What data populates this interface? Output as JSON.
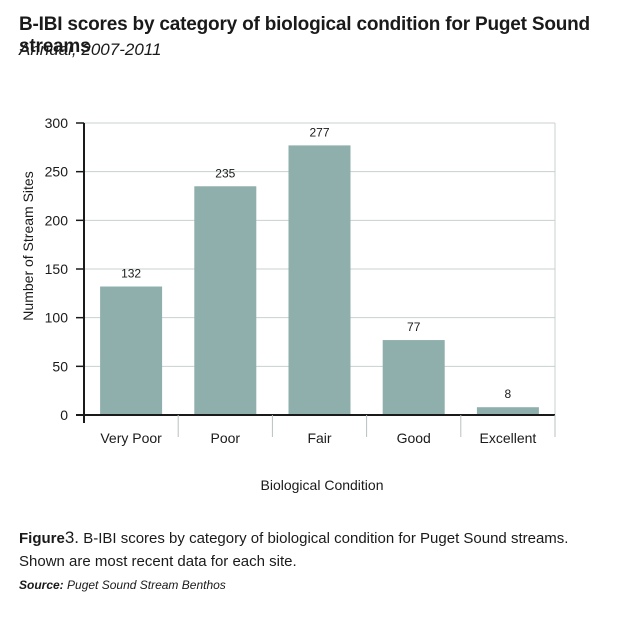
{
  "header": {
    "title": "B-IBI scores by category of biological condition for Puget Sound streams",
    "subtitle": "Annual, 2007-2011"
  },
  "chart_data": {
    "type": "bar",
    "categories": [
      "Very Poor",
      "Poor",
      "Fair",
      "Good",
      "Excellent"
    ],
    "values": [
      132,
      235,
      277,
      77,
      8
    ],
    "data_labels": [
      "132",
      "235",
      "277",
      "77",
      "8"
    ],
    "xlabel": "Biological Condition",
    "ylabel": "Number of Stream Sites",
    "ylim": [
      0,
      300
    ],
    "yticks": [
      0,
      50,
      100,
      150,
      200,
      250,
      300
    ],
    "grid": true,
    "bar_color": "#8fafad"
  },
  "caption": {
    "label": "Figure",
    "number": "3.",
    "text": " B-IBI scores by category of biological condition for Puget Sound streams. Shown are most recent data for each site."
  },
  "source": {
    "label": "Source:",
    "text": " Puget Sound Stream Benthos"
  }
}
